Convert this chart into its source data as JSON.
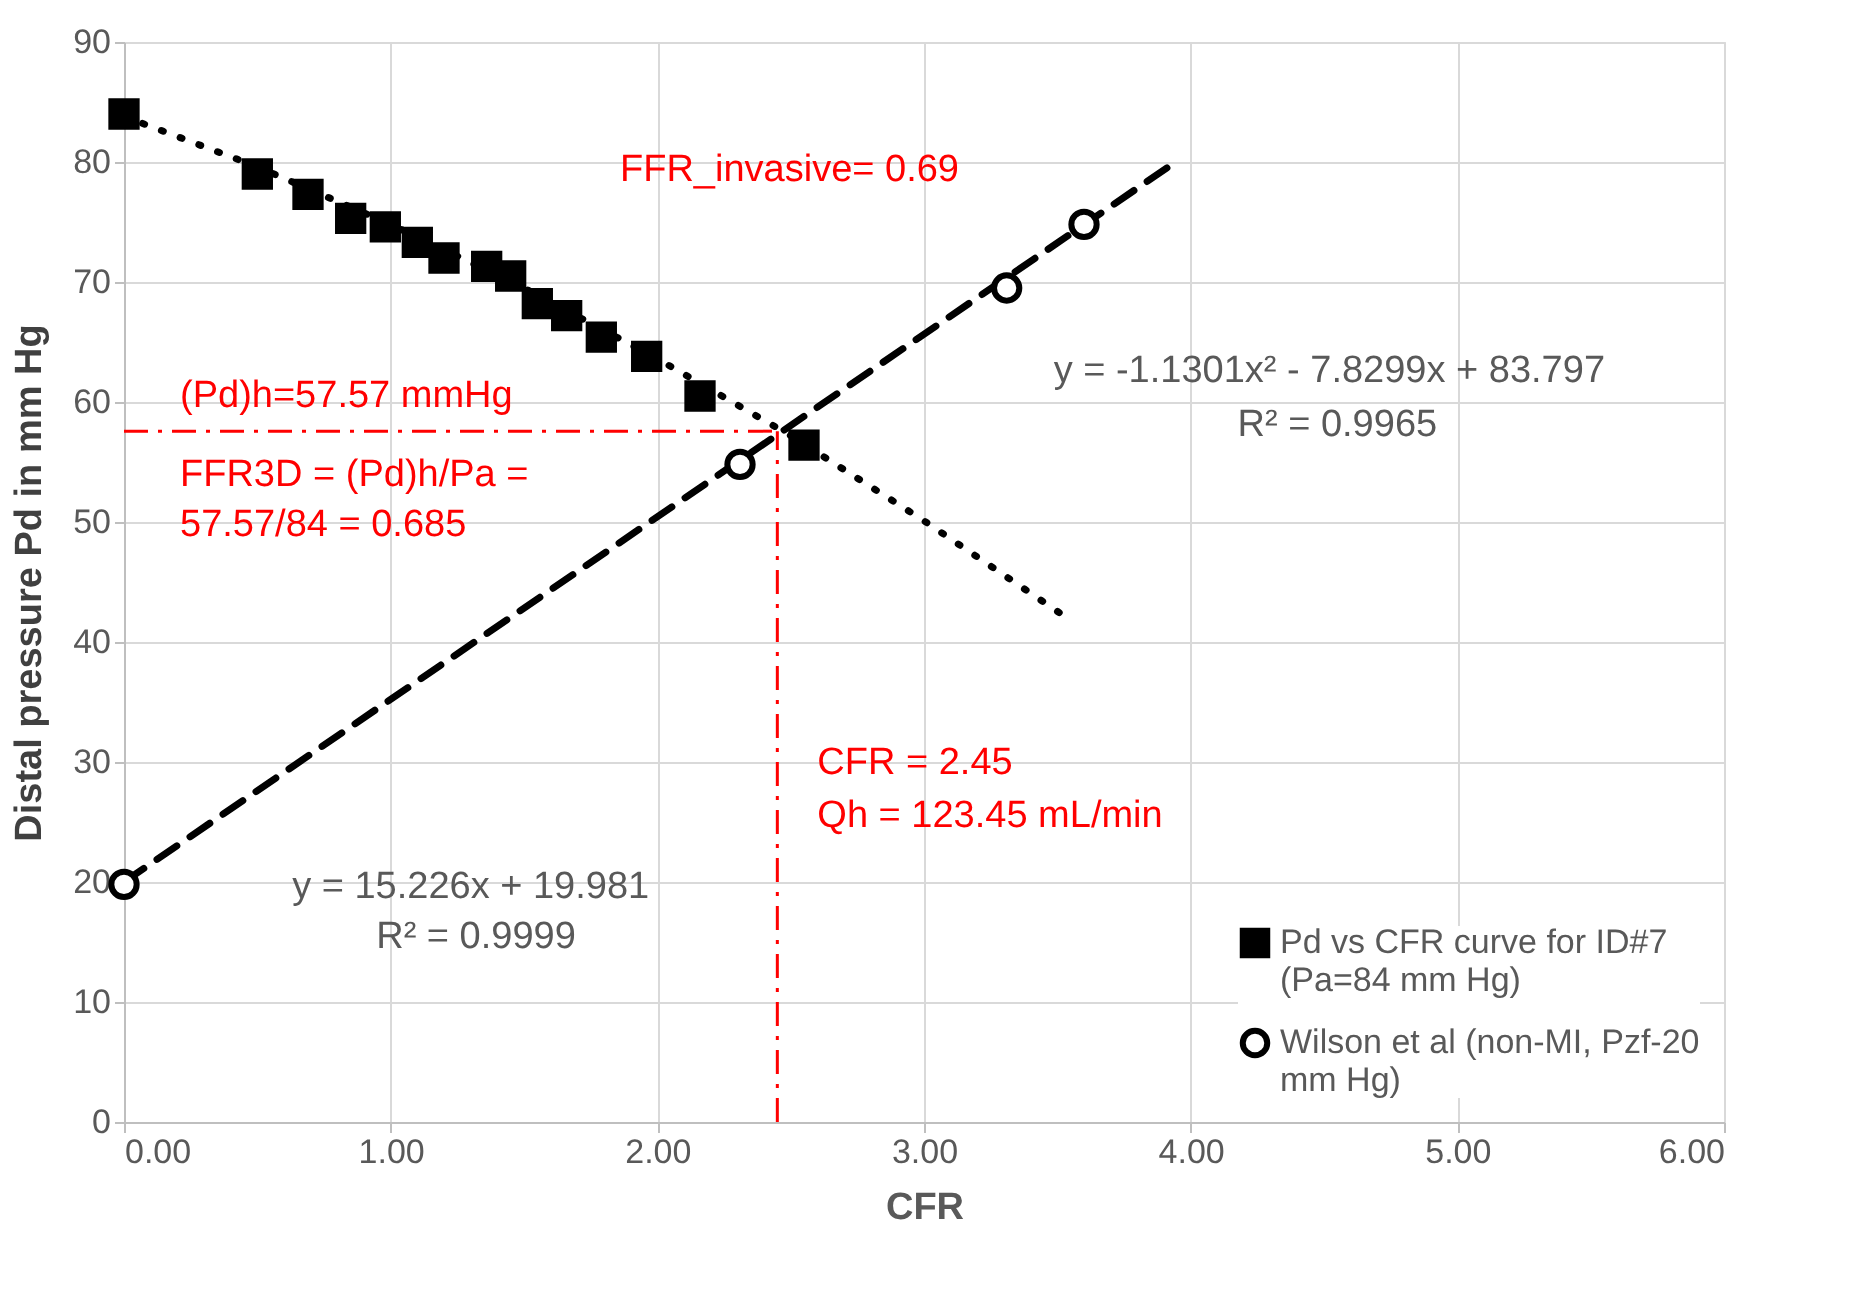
{
  "chart_data": {
    "type": "scatter",
    "xlabel": "CFR",
    "ylabel": "Distal pressure  Pd in mm Hg",
    "xlim": [
      0,
      6
    ],
    "ylim": [
      0,
      90
    ],
    "xticks": [
      {
        "value": 0,
        "label": "0.00"
      },
      {
        "value": 1,
        "label": "1.00"
      },
      {
        "value": 2,
        "label": "2.00"
      },
      {
        "value": 3,
        "label": "3.00"
      },
      {
        "value": 4,
        "label": "4.00"
      },
      {
        "value": 5,
        "label": "5.00"
      },
      {
        "value": 6,
        "label": "6.00"
      }
    ],
    "yticks": [
      0,
      10,
      20,
      30,
      40,
      50,
      60,
      70,
      80,
      90
    ],
    "grid": true,
    "legend": "bottom right",
    "series": [
      {
        "name": "Pd vs CFR curve for ID#7 (Pa=84 mm Hg)",
        "type": "scatter",
        "marker": "square",
        "color": "#000000",
        "x": [
          0,
          0.5,
          0.69,
          0.85,
          0.98,
          1.1,
          1.2,
          1.36,
          1.45,
          1.55,
          1.66,
          1.79,
          1.96,
          2.16,
          2.55
        ],
        "values": [
          84,
          79,
          77.3,
          75.3,
          74.6,
          73.3,
          72.0,
          71.3,
          70.5,
          68.2,
          67.2,
          65.4,
          63.8,
          60.5,
          56.4
        ]
      },
      {
        "name": "Wilson et al (non-MI, Pzf-20 mm Hg)",
        "type": "scatter",
        "marker": "circle",
        "color": "#000000",
        "x": [
          0,
          2.31,
          3.31,
          3.6
        ],
        "values": [
          19.8,
          54.8,
          69.5,
          74.8
        ]
      },
      {
        "type": "line",
        "line_style": "dotted",
        "marker": "none",
        "color": "#000000",
        "x": [
          0,
          0.5,
          1,
          1.5,
          2,
          2.5,
          3,
          3.55
        ],
        "values": [
          83.8,
          79.6,
          74.8,
          69.5,
          63.6,
          57.2,
          50.1,
          41.8
        ]
      },
      {
        "type": "line",
        "line_style": "dashed",
        "marker": "none",
        "color": "#000000",
        "x": [
          0,
          3.95
        ],
        "values": [
          20.0,
          80.1
        ]
      }
    ],
    "ref_lines": [
      {
        "axis": "y",
        "value": 57.57,
        "label": "(Pd)h=57.57 mmHg",
        "color": "#ff0000",
        "line_style": "dashdot"
      },
      {
        "axis": "x",
        "value": 2.45,
        "label": "CFR = 2.45",
        "color": "#ff0000",
        "line_style": "dashdot"
      }
    ],
    "annotations": [
      "FFR_invasive= 0.69",
      "FFR3D = (Pd)h/Pa =",
      "57.57/84 = 0.685",
      "Qh = 123.45 mL/min",
      "y = -1.1301x² - 7.8299x + 83.797",
      "R² = 0.9965",
      "y = 15.226x + 19.981",
      "R² = 0.9999"
    ]
  }
}
